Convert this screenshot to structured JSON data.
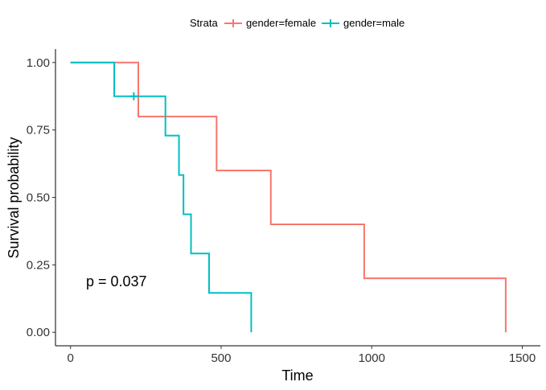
{
  "chart_data": {
    "type": "line",
    "subtype": "kaplan-meier-step",
    "xlabel": "Time",
    "ylabel": "Survival probability",
    "xlim": [
      -50,
      1560
    ],
    "ylim": [
      -0.05,
      1.05
    ],
    "x_ticks": [
      0,
      500,
      1000,
      1500
    ],
    "x_tick_labels": [
      "0",
      "500",
      "1000",
      "1500"
    ],
    "y_ticks": [
      0.0,
      0.25,
      0.5,
      0.75,
      1.0
    ],
    "y_tick_labels": [
      "0.00",
      "0.25",
      "0.50",
      "0.75",
      "1.00"
    ],
    "grid": false,
    "legend": {
      "title": "Strata",
      "placement": "top",
      "entries": [
        "gender=female",
        "gender=male"
      ]
    },
    "annotation": "p = 0.037",
    "annotation_at": {
      "x": 0,
      "y": 0.18
    },
    "series": [
      {
        "name": "gender=female",
        "color": "#F8766D",
        "steps": [
          {
            "x": 0,
            "y": 1.0
          },
          {
            "x": 225,
            "y": 0.8
          },
          {
            "x": 485,
            "y": 0.6
          },
          {
            "x": 665,
            "y": 0.4
          },
          {
            "x": 975,
            "y": 0.2
          },
          {
            "x": 1445,
            "y": 0.0
          }
        ],
        "censored": []
      },
      {
        "name": "gender=male",
        "color": "#00BFC4",
        "steps": [
          {
            "x": 0,
            "y": 1.0
          },
          {
            "x": 145,
            "y": 0.875
          },
          {
            "x": 315,
            "y": 0.729
          },
          {
            "x": 360,
            "y": 0.583
          },
          {
            "x": 375,
            "y": 0.4375
          },
          {
            "x": 400,
            "y": 0.292
          },
          {
            "x": 460,
            "y": 0.146
          },
          {
            "x": 600,
            "y": 0.0
          }
        ],
        "censored": [
          {
            "x": 210,
            "y": 0.875
          }
        ]
      }
    ]
  }
}
